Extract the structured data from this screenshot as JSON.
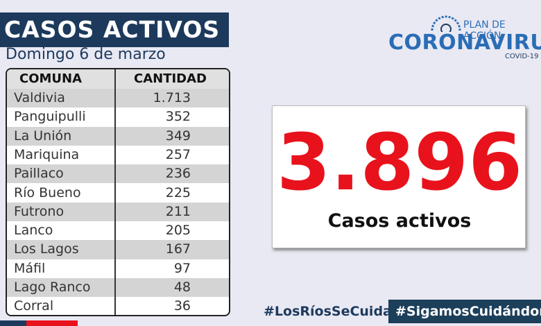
{
  "header": {
    "title": "CASOS ACTIVOS",
    "subtitle": "Domingo 6 de marzo"
  },
  "logo": {
    "line1": "PLAN DE ACCIÓN",
    "line2": "CORONAVIRUS",
    "line3": "COVID-19"
  },
  "table": {
    "columns": [
      "COMUNA",
      "CANTIDAD"
    ],
    "rows": [
      [
        "Valdivia",
        "1.713"
      ],
      [
        "Panguipulli",
        "352"
      ],
      [
        "La Unión",
        "349"
      ],
      [
        "Mariquina",
        "257"
      ],
      [
        "Paillaco",
        "236"
      ],
      [
        "Río Bueno",
        "225"
      ],
      [
        "Futrono",
        "211"
      ],
      [
        "Lanco",
        "205"
      ],
      [
        "Los Lagos",
        "167"
      ],
      [
        "Máfil",
        "97"
      ],
      [
        "Lago Ranco",
        "48"
      ],
      [
        "Corral",
        "36"
      ]
    ]
  },
  "total": {
    "value": "3.896",
    "label": "Casos activos"
  },
  "hashtags": [
    "#LosRíosSeCuida",
    "#SigamosCuidándonos"
  ]
}
